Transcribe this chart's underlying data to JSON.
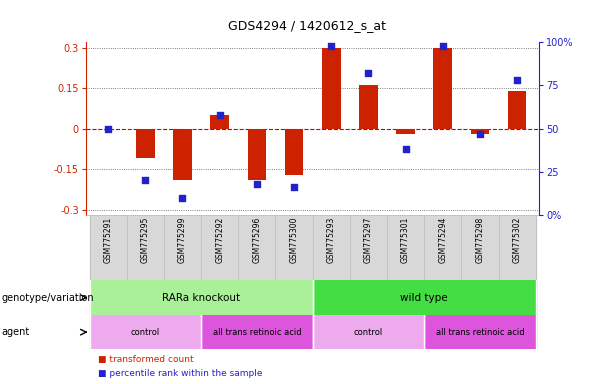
{
  "title": "GDS4294 / 1420612_s_at",
  "samples": [
    "GSM775291",
    "GSM775295",
    "GSM775299",
    "GSM775292",
    "GSM775296",
    "GSM775300",
    "GSM775293",
    "GSM775297",
    "GSM775301",
    "GSM775294",
    "GSM775298",
    "GSM775302"
  ],
  "bar_values": [
    0.0,
    -0.11,
    -0.19,
    0.05,
    -0.19,
    -0.17,
    0.3,
    0.16,
    -0.02,
    0.3,
    -0.02,
    0.14
  ],
  "dot_values_pct": [
    50,
    20,
    10,
    58,
    18,
    16,
    98,
    82,
    38,
    98,
    47,
    78
  ],
  "ylim_left": [
    -0.32,
    0.32
  ],
  "ylim_right": [
    0,
    100
  ],
  "yticks_left": [
    -0.3,
    -0.15,
    0.0,
    0.15,
    0.3
  ],
  "yticks_right": [
    0,
    25,
    50,
    75,
    100
  ],
  "ytick_labels_left": [
    "-0.3",
    "-0.15",
    "0",
    "0.15",
    "0.3"
  ],
  "ytick_labels_right": [
    "0%",
    "25",
    "50",
    "75",
    "100%"
  ],
  "bar_color": "#cc2200",
  "dot_color": "#2222cc",
  "zero_line_color": "#cc0000",
  "grid_color": "#555555",
  "bg_color": "#ffffff",
  "genotype_groups": [
    {
      "label": "RARa knockout",
      "start": 0,
      "end": 6,
      "color": "#aaf099"
    },
    {
      "label": "wild type",
      "start": 6,
      "end": 12,
      "color": "#44dd44"
    }
  ],
  "agent_groups": [
    {
      "label": "control",
      "start": 0,
      "end": 3,
      "color": "#eeaaee"
    },
    {
      "label": "all trans retinoic acid",
      "start": 3,
      "end": 6,
      "color": "#dd55dd"
    },
    {
      "label": "control",
      "start": 6,
      "end": 9,
      "color": "#eeaaee"
    },
    {
      "label": "all trans retinoic acid",
      "start": 9,
      "end": 12,
      "color": "#dd55dd"
    }
  ],
  "legend_items": [
    {
      "label": "transformed count",
      "color": "#cc2200"
    },
    {
      "label": "percentile rank within the sample",
      "color": "#2222cc"
    }
  ],
  "label_genotype": "genotype/variation",
  "label_agent": "agent"
}
